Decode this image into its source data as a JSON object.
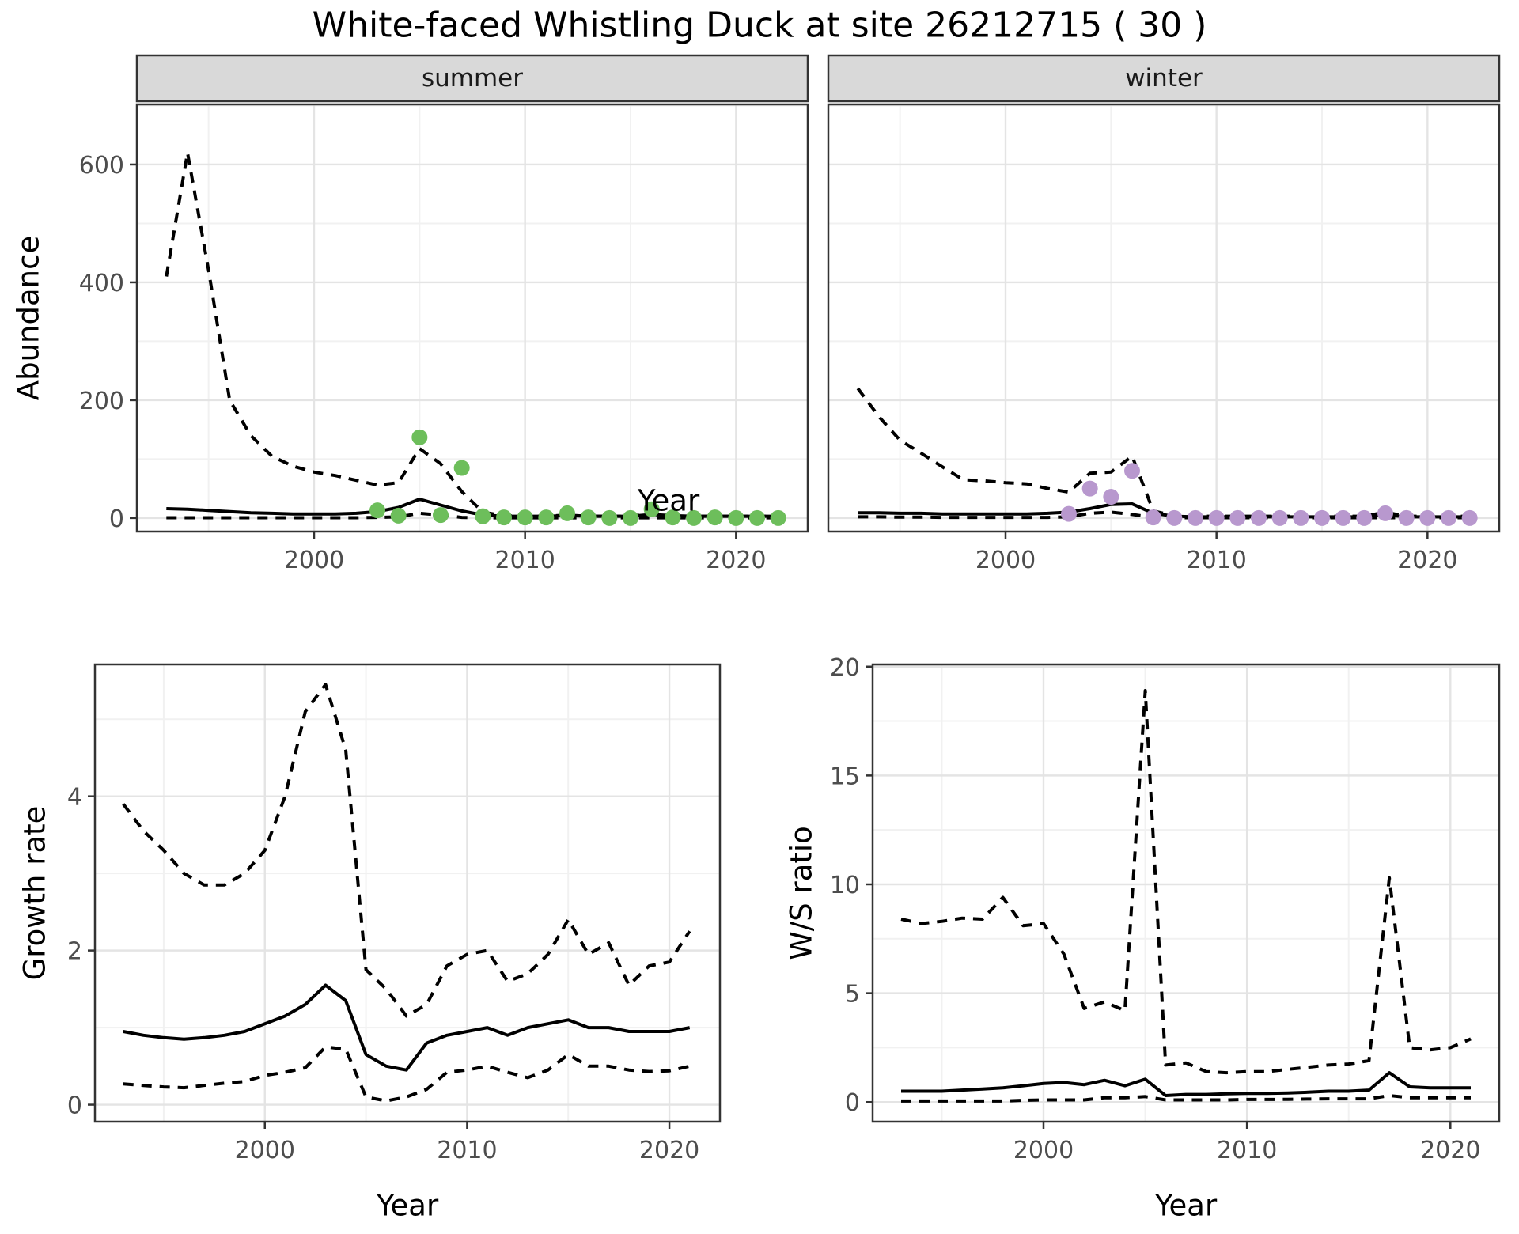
{
  "title": "White-faced Whistling Duck at site 26212715 ( 30 )",
  "axes": {
    "abundance": "Abundance",
    "year": "Year",
    "growth_rate": "Growth rate",
    "ws_ratio": "W/S ratio"
  },
  "facets": {
    "summer": "summer",
    "winter": "winter"
  },
  "colors": {
    "summer_point": "#6DBE5B",
    "winter_point": "#B898CE",
    "line": "#000000",
    "strip_bg": "#D9D9D9",
    "panel_border": "#333333",
    "grid_major": "#E4E4E4",
    "grid_minor": "#F1F1F1",
    "tick_mark": "#333333",
    "tick_text": "#4D4D4D"
  },
  "chart_data": [
    {
      "id": "abundance-summer",
      "type": "line",
      "facet": "summer",
      "xlabel": "Year",
      "ylabel": "Abundance",
      "xlim": [
        1991.6,
        2023.4
      ],
      "ylim": [
        -23,
        702
      ],
      "xticks": [
        2000,
        2010,
        2020
      ],
      "xminor": [
        1995,
        2005,
        2015
      ],
      "yticks": [
        0,
        200,
        400,
        600
      ],
      "yminor": [
        100,
        300,
        500,
        700
      ],
      "x": [
        1993,
        1994,
        1995,
        1996,
        1997,
        1998,
        1999,
        2000,
        2001,
        2002,
        2003,
        2004,
        2005,
        2006,
        2007,
        2008,
        2009,
        2010,
        2011,
        2012,
        2013,
        2014,
        2015,
        2016,
        2017,
        2018,
        2019,
        2020,
        2021,
        2022
      ],
      "series": [
        {
          "name": "upper_ci",
          "style": "dashed",
          "values": [
            410,
            620,
            420,
            200,
            140,
            105,
            88,
            78,
            72,
            64,
            56,
            60,
            118,
            92,
            45,
            10,
            4,
            3,
            3,
            5,
            3,
            3,
            3,
            8,
            3,
            3,
            3,
            3,
            3,
            3
          ]
        },
        {
          "name": "median",
          "style": "solid",
          "values": [
            16,
            15,
            13,
            11,
            9,
            8,
            7,
            7,
            7,
            8,
            11,
            18,
            32,
            22,
            12,
            5,
            3,
            3,
            3,
            4,
            3,
            3,
            3,
            6,
            4,
            3,
            3,
            3,
            3,
            3
          ]
        },
        {
          "name": "lower_ci",
          "style": "dashed",
          "values": [
            0.5,
            0.5,
            0.5,
            0.5,
            0.5,
            0.5,
            0.5,
            0.5,
            0.5,
            0.5,
            1,
            2,
            8,
            5,
            1,
            0.3,
            0.3,
            0.3,
            0.3,
            0.3,
            0.3,
            0.3,
            0.3,
            0.3,
            0.3,
            0.3,
            0.3,
            0.3,
            0.3,
            0.3
          ]
        },
        {
          "name": "observed_counts",
          "style": "points",
          "color_key": "summer_point",
          "values": [
            [
              2003,
              13
            ],
            [
              2004,
              4
            ],
            [
              2005,
              137
            ],
            [
              2006,
              5
            ],
            [
              2007,
              85
            ],
            [
              2008,
              3
            ],
            [
              2009,
              1
            ],
            [
              2010,
              1
            ],
            [
              2011,
              1
            ],
            [
              2012,
              8
            ],
            [
              2013,
              1
            ],
            [
              2014,
              0
            ],
            [
              2015,
              0
            ],
            [
              2016,
              15
            ],
            [
              2017,
              1
            ],
            [
              2018,
              0
            ],
            [
              2019,
              1
            ],
            [
              2020,
              0
            ],
            [
              2021,
              0
            ],
            [
              2022,
              0
            ]
          ]
        }
      ]
    },
    {
      "id": "abundance-winter",
      "type": "line",
      "facet": "winter",
      "xlabel": "Year",
      "ylabel": "Abundance",
      "xlim": [
        1991.6,
        2023.4
      ],
      "ylim": [
        -23,
        702
      ],
      "xticks": [
        2000,
        2010,
        2020
      ],
      "xminor": [
        1995,
        2005,
        2015
      ],
      "yticks": [
        0,
        200,
        400,
        600
      ],
      "yminor": [
        100,
        300,
        500,
        700
      ],
      "x": [
        1993,
        1994,
        1995,
        1996,
        1997,
        1998,
        1999,
        2000,
        2001,
        2002,
        2003,
        2004,
        2005,
        2006,
        2007,
        2008,
        2009,
        2010,
        2011,
        2012,
        2013,
        2014,
        2015,
        2016,
        2017,
        2018,
        2019,
        2020,
        2021,
        2022
      ],
      "series": [
        {
          "name": "upper_ci",
          "style": "dashed",
          "values": [
            220,
            172,
            132,
            110,
            87,
            65,
            63,
            60,
            58,
            50,
            44,
            76,
            78,
            105,
            12,
            4,
            3,
            3,
            3,
            3,
            3,
            3,
            3,
            3,
            3,
            10,
            3,
            3,
            3,
            3
          ]
        },
        {
          "name": "median",
          "style": "solid",
          "values": [
            9,
            9,
            8,
            8,
            7,
            7,
            7,
            7,
            7,
            8,
            10,
            16,
            23,
            24,
            8,
            3,
            2,
            2,
            2,
            2,
            2,
            2,
            2,
            2,
            2,
            5,
            2,
            2,
            2,
            2
          ]
        },
        {
          "name": "lower_ci",
          "style": "dashed",
          "values": [
            2,
            2,
            1.5,
            1.5,
            1,
            1,
            1,
            1,
            1,
            1,
            2,
            8,
            10,
            6,
            1,
            0.5,
            0.5,
            0.5,
            0.5,
            0.5,
            0.5,
            0.5,
            0.5,
            0.5,
            0.5,
            0.5,
            0.5,
            0.5,
            0.5,
            0.5
          ]
        },
        {
          "name": "observed_counts",
          "style": "points",
          "color_key": "winter_point",
          "values": [
            [
              2003,
              7
            ],
            [
              2004,
              50
            ],
            [
              2005,
              36
            ],
            [
              2006,
              80
            ],
            [
              2007,
              1
            ],
            [
              2008,
              0
            ],
            [
              2009,
              0
            ],
            [
              2010,
              0
            ],
            [
              2011,
              0
            ],
            [
              2012,
              0
            ],
            [
              2013,
              0
            ],
            [
              2014,
              0
            ],
            [
              2015,
              0
            ],
            [
              2016,
              0
            ],
            [
              2017,
              0
            ],
            [
              2018,
              8
            ],
            [
              2019,
              0
            ],
            [
              2020,
              0
            ],
            [
              2021,
              0
            ],
            [
              2022,
              0
            ]
          ]
        }
      ]
    },
    {
      "id": "growth-rate",
      "type": "line",
      "xlabel": "Year",
      "ylabel": "Growth rate",
      "xlim": [
        1991.6,
        2022.5
      ],
      "ylim": [
        -0.22,
        5.71
      ],
      "xticks": [
        2000,
        2010,
        2020
      ],
      "xminor": [
        1995,
        2005,
        2015
      ],
      "yticks": [
        0,
        2,
        4
      ],
      "yminor": [
        1,
        3,
        5
      ],
      "x": [
        1993,
        1994,
        1995,
        1996,
        1997,
        1998,
        1999,
        2000,
        2001,
        2002,
        2003,
        2004,
        2005,
        2006,
        2007,
        2008,
        2009,
        2010,
        2011,
        2012,
        2013,
        2014,
        2015,
        2016,
        2017,
        2018,
        2019,
        2020,
        2021
      ],
      "series": [
        {
          "name": "upper_ci",
          "style": "dashed",
          "values": [
            3.9,
            3.55,
            3.3,
            3.0,
            2.85,
            2.85,
            3.0,
            3.3,
            4.0,
            5.1,
            5.45,
            4.6,
            1.75,
            1.5,
            1.15,
            1.3,
            1.8,
            1.95,
            2.0,
            1.6,
            1.7,
            1.95,
            2.4,
            1.95,
            2.1,
            1.55,
            1.8,
            1.85,
            2.25
          ]
        },
        {
          "name": "median",
          "style": "solid",
          "values": [
            0.95,
            0.9,
            0.87,
            0.85,
            0.87,
            0.9,
            0.95,
            1.05,
            1.15,
            1.3,
            1.55,
            1.35,
            0.65,
            0.5,
            0.45,
            0.8,
            0.9,
            0.95,
            1.0,
            0.9,
            1.0,
            1.05,
            1.1,
            1.0,
            1.0,
            0.95,
            0.95,
            0.95,
            1.0
          ]
        },
        {
          "name": "lower_ci",
          "style": "dashed",
          "values": [
            0.27,
            0.25,
            0.23,
            0.22,
            0.25,
            0.28,
            0.3,
            0.38,
            0.42,
            0.48,
            0.75,
            0.72,
            0.1,
            0.05,
            0.1,
            0.2,
            0.42,
            0.45,
            0.5,
            0.42,
            0.35,
            0.45,
            0.65,
            0.5,
            0.5,
            0.45,
            0.43,
            0.44,
            0.5
          ]
        }
      ]
    },
    {
      "id": "ws-ratio",
      "type": "line",
      "xlabel": "Year",
      "ylabel": "W/S ratio",
      "xlim": [
        1991.6,
        2022.4
      ],
      "ylim": [
        -0.9,
        20.1
      ],
      "xticks": [
        2000,
        2010,
        2020
      ],
      "xminor": [
        1995,
        2005,
        2015
      ],
      "yticks": [
        0,
        5,
        10,
        15,
        20
      ],
      "yminor": [
        2.5,
        7.5,
        12.5,
        17.5
      ],
      "x": [
        1993,
        1994,
        1995,
        1996,
        1997,
        1998,
        1999,
        2000,
        2001,
        2002,
        2003,
        2004,
        2005,
        2006,
        2007,
        2008,
        2009,
        2010,
        2011,
        2012,
        2013,
        2014,
        2015,
        2016,
        2017,
        2018,
        2019,
        2020,
        2021
      ],
      "series": [
        {
          "name": "upper_ci",
          "style": "dashed",
          "values": [
            8.4,
            8.2,
            8.3,
            8.45,
            8.4,
            9.4,
            8.1,
            8.2,
            6.8,
            4.3,
            4.6,
            4.2,
            18.9,
            1.7,
            1.8,
            1.4,
            1.35,
            1.4,
            1.4,
            1.5,
            1.6,
            1.7,
            1.75,
            1.9,
            10.3,
            2.5,
            2.4,
            2.5,
            2.9
          ]
        },
        {
          "name": "median",
          "style": "solid",
          "values": [
            0.5,
            0.5,
            0.5,
            0.55,
            0.6,
            0.65,
            0.75,
            0.85,
            0.9,
            0.8,
            1.0,
            0.75,
            1.05,
            0.3,
            0.35,
            0.35,
            0.38,
            0.4,
            0.4,
            0.42,
            0.45,
            0.5,
            0.5,
            0.55,
            1.35,
            0.7,
            0.65,
            0.65,
            0.65
          ]
        },
        {
          "name": "lower_ci",
          "style": "dashed",
          "values": [
            0.05,
            0.05,
            0.05,
            0.05,
            0.05,
            0.05,
            0.08,
            0.1,
            0.1,
            0.1,
            0.2,
            0.2,
            0.25,
            0.1,
            0.1,
            0.1,
            0.1,
            0.12,
            0.12,
            0.13,
            0.14,
            0.15,
            0.15,
            0.15,
            0.3,
            0.2,
            0.2,
            0.2,
            0.2
          ]
        }
      ]
    }
  ]
}
